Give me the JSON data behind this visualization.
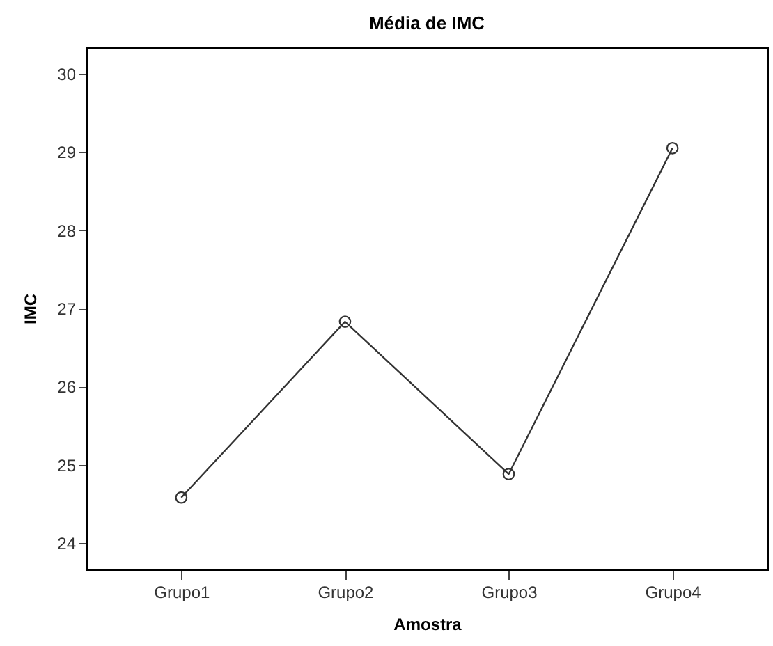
{
  "chart_data": {
    "type": "line",
    "title": "Média de IMC",
    "xlabel": "Amostra",
    "ylabel": "IMC",
    "categories": [
      "Grupo1",
      "Grupo2",
      "Grupo3",
      "Grupo4"
    ],
    "series": [
      {
        "color": "#333333",
        "values": [
          24.58,
          26.83,
          24.88,
          29.05
        ]
      }
    ],
    "ylim": [
      23.66,
      30.34
    ],
    "yticks": [
      24,
      25,
      26,
      27,
      28,
      29,
      30
    ],
    "grid": false,
    "legend": false,
    "marker": "circle",
    "line_style": "solid"
  }
}
